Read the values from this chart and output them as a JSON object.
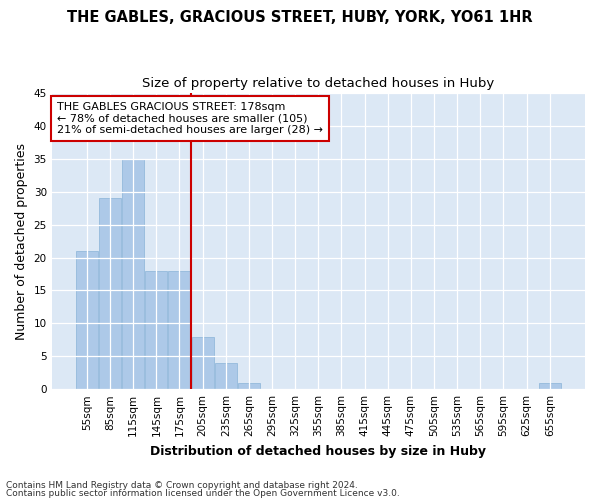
{
  "title": "THE GABLES, GRACIOUS STREET, HUBY, YORK, YO61 1HR",
  "subtitle": "Size of property relative to detached houses in Huby",
  "xlabel": "Distribution of detached houses by size in Huby",
  "ylabel": "Number of detached properties",
  "footnote1": "Contains HM Land Registry data © Crown copyright and database right 2024.",
  "footnote2": "Contains public sector information licensed under the Open Government Licence v3.0.",
  "categories": [
    "55sqm",
    "85sqm",
    "115sqm",
    "145sqm",
    "175sqm",
    "205sqm",
    "235sqm",
    "265sqm",
    "295sqm",
    "325sqm",
    "355sqm",
    "385sqm",
    "415sqm",
    "445sqm",
    "475sqm",
    "505sqm",
    "535sqm",
    "565sqm",
    "595sqm",
    "625sqm",
    "655sqm"
  ],
  "values": [
    21,
    29,
    35,
    18,
    18,
    8,
    4,
    1,
    0,
    0,
    0,
    0,
    0,
    0,
    0,
    0,
    0,
    0,
    0,
    0,
    1
  ],
  "bar_color": "#adc9e8",
  "bar_edge_color": "#8ab4d8",
  "vline_x_index": 4,
  "vline_color": "#cc0000",
  "ylim": [
    0,
    45
  ],
  "yticks": [
    0,
    5,
    10,
    15,
    20,
    25,
    30,
    35,
    40,
    45
  ],
  "bg_color": "#dce8f5",
  "grid_color": "#ffffff",
  "annotation_line1": "THE GABLES GRACIOUS STREET: 178sqm",
  "annotation_line2": "← 78% of detached houses are smaller (105)",
  "annotation_line3": "21% of semi-detached houses are larger (28) →",
  "annotation_box_color": "#ffffff",
  "annotation_box_edge": "#cc0000",
  "title_fontsize": 10.5,
  "subtitle_fontsize": 9.5,
  "axis_label_fontsize": 9,
  "tick_fontsize": 7.5,
  "annotation_fontsize": 8,
  "footnote_fontsize": 6.5
}
